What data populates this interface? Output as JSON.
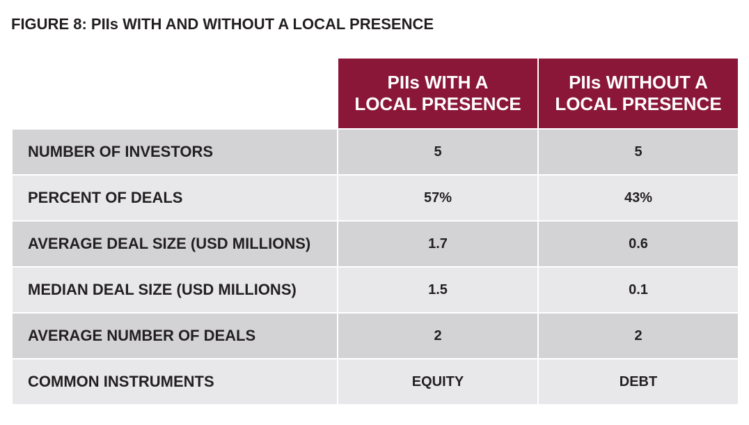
{
  "title": "FIGURE 8: PIIs WITH AND WITHOUT A LOCAL PRESENCE",
  "columns": [
    "PIIs WITH A LOCAL PRESENCE",
    "PIIs WITHOUT A LOCAL PRESENCE"
  ],
  "rows": [
    {
      "label": "NUMBER OF INVESTORS",
      "with": "5",
      "without": "5"
    },
    {
      "label": "PERCENT OF DEALS",
      "with": "57%",
      "without": "43%"
    },
    {
      "label": "AVERAGE DEAL SIZE (USD MILLIONS)",
      "with": "1.7",
      "without": "0.6"
    },
    {
      "label": "MEDIAN DEAL SIZE (USD MILLIONS)",
      "with": "1.5",
      "without": "0.1"
    },
    {
      "label": "AVERAGE NUMBER OF DEALS",
      "with": "2",
      "without": "2"
    },
    {
      "label": "COMMON INSTRUMENTS",
      "with": "EQUITY",
      "without": "DEBT"
    }
  ],
  "colors": {
    "header_bg": "#8a1738",
    "row_dark": "#d3d3d5",
    "row_light": "#e8e8ea",
    "text": "#231f20"
  }
}
